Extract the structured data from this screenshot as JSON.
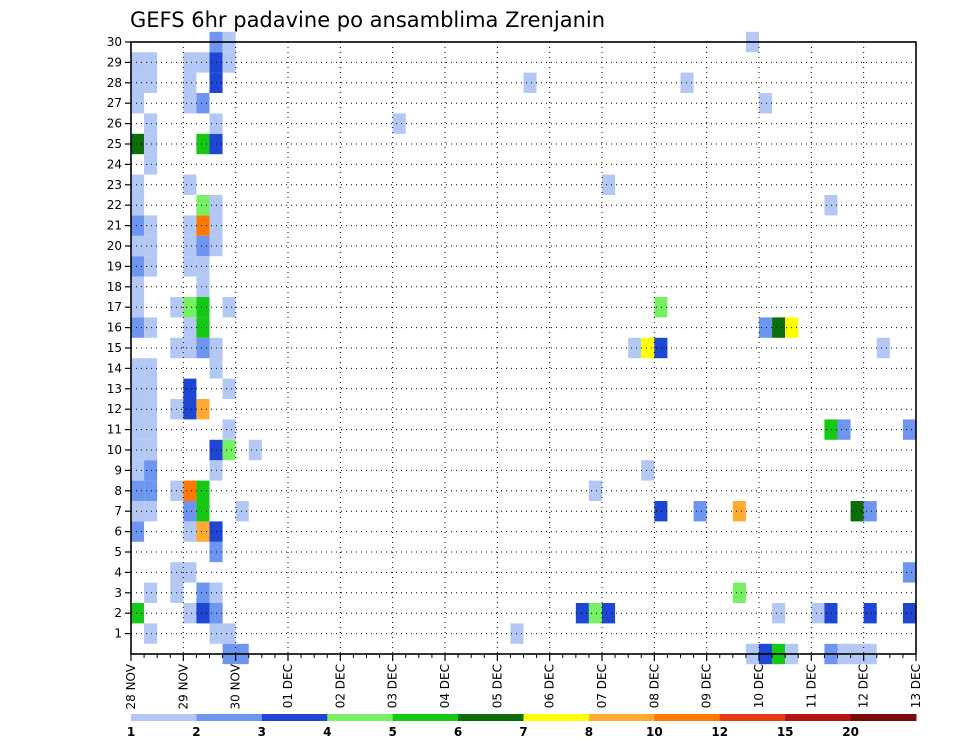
{
  "chart_data": {
    "type": "heatmap",
    "title": "GEFS 6hr padavine po ansamblima Zrenjanin",
    "xlabel": "",
    "ylabel": "",
    "y_ticks": [
      "1",
      "2",
      "3",
      "4",
      "5",
      "6",
      "7",
      "8",
      "9",
      "10",
      "11",
      "12",
      "13",
      "14",
      "15",
      "16",
      "17",
      "18",
      "19",
      "20",
      "21",
      "22",
      "23",
      "24",
      "25",
      "26",
      "27",
      "28",
      "29",
      "30"
    ],
    "x_ticks": [
      "28 NOV",
      "29 NOV",
      "30 NOV",
      "01 DEC",
      "02 DEC",
      "03 DEC",
      "04 DEC",
      "05 DEC",
      "06 DEC",
      "07 DEC",
      "08 DEC",
      "09 DEC",
      "10 DEC",
      "11 DEC",
      "12 DEC",
      "13 DEC"
    ],
    "x_range_days": [
      0,
      15
    ],
    "y_range": [
      0,
      30
    ],
    "levels": [
      "1",
      "2",
      "3",
      "4",
      "5",
      "6",
      "7",
      "8",
      "10",
      "12",
      "15",
      "20"
    ],
    "colors": [
      "#b4c8f5",
      "#6e96f0",
      "#1e46d2",
      "#78f064",
      "#14c814",
      "#0a6e0a",
      "#ffff00",
      "#ffaa32",
      "#ff7800",
      "#e63c14",
      "#b41414",
      "#780a0a"
    ],
    "cells": [
      [
        0.25,
        1,
        1
      ],
      [
        0.75,
        3,
        1
      ],
      [
        0.75,
        4,
        1
      ],
      [
        1.0,
        2,
        1
      ],
      [
        1.25,
        3,
        1
      ],
      [
        1.5,
        1,
        1
      ],
      [
        1.5,
        2,
        1
      ],
      [
        1.75,
        1,
        1
      ],
      [
        7.25,
        1,
        1
      ],
      [
        0.0,
        2,
        5
      ],
      [
        1.25,
        2,
        3
      ],
      [
        1.5,
        2,
        2
      ],
      [
        8.5,
        2,
        3
      ],
      [
        8.75,
        2,
        4
      ],
      [
        9.0,
        2,
        3
      ],
      [
        12.25,
        2,
        1
      ],
      [
        13.0,
        2,
        1
      ],
      [
        13.25,
        2,
        3
      ],
      [
        14.0,
        2,
        3
      ],
      [
        14.75,
        2,
        3
      ],
      [
        0.25,
        3,
        1
      ],
      [
        1.25,
        3,
        2
      ],
      [
        1.5,
        3,
        1
      ],
      [
        11.5,
        3,
        4
      ],
      [
        1.0,
        4,
        1
      ],
      [
        14.75,
        4,
        2
      ],
      [
        1.5,
        5,
        2
      ],
      [
        0.0,
        6,
        2
      ],
      [
        1.0,
        6,
        1
      ],
      [
        1.25,
        6,
        8
      ],
      [
        1.5,
        6,
        3
      ],
      [
        0.0,
        7,
        1
      ],
      [
        0.25,
        7,
        1
      ],
      [
        1.0,
        7,
        2
      ],
      [
        1.25,
        7,
        5
      ],
      [
        2.0,
        7,
        1
      ],
      [
        10.0,
        7,
        3
      ],
      [
        10.75,
        7,
        2
      ],
      [
        11.5,
        7,
        8
      ],
      [
        13.75,
        7,
        6
      ],
      [
        14.0,
        7,
        2
      ],
      [
        0.0,
        8,
        2
      ],
      [
        0.25,
        8,
        2
      ],
      [
        0.75,
        8,
        1
      ],
      [
        1.0,
        8,
        9
      ],
      [
        1.25,
        8,
        5
      ],
      [
        8.75,
        8,
        1
      ],
      [
        0.0,
        9,
        1
      ],
      [
        0.25,
        9,
        2
      ],
      [
        1.5,
        9,
        1
      ],
      [
        9.75,
        9,
        1
      ],
      [
        0.0,
        10,
        1
      ],
      [
        0.25,
        10,
        1
      ],
      [
        1.5,
        10,
        3
      ],
      [
        1.75,
        10,
        4
      ],
      [
        2.25,
        10,
        1
      ],
      [
        0.0,
        11,
        1
      ],
      [
        0.25,
        11,
        1
      ],
      [
        1.75,
        11,
        1
      ],
      [
        13.25,
        11,
        5
      ],
      [
        13.5,
        11,
        2
      ],
      [
        14.75,
        11,
        2
      ],
      [
        0.0,
        12,
        1
      ],
      [
        0.25,
        12,
        1
      ],
      [
        0.75,
        12,
        1
      ],
      [
        1.0,
        12,
        3
      ],
      [
        1.25,
        12,
        8
      ],
      [
        0.0,
        13,
        1
      ],
      [
        0.25,
        13,
        1
      ],
      [
        1.0,
        13,
        3
      ],
      [
        1.75,
        13,
        1
      ],
      [
        0.0,
        14,
        1
      ],
      [
        0.25,
        14,
        1
      ],
      [
        1.5,
        14,
        1
      ],
      [
        0.75,
        15,
        1
      ],
      [
        1.0,
        15,
        1
      ],
      [
        1.25,
        15,
        2
      ],
      [
        1.5,
        15,
        1
      ],
      [
        9.5,
        15,
        1
      ],
      [
        9.75,
        15,
        7
      ],
      [
        10.0,
        15,
        3
      ],
      [
        14.25,
        15,
        1
      ],
      [
        0.0,
        16,
        2
      ],
      [
        0.25,
        16,
        1
      ],
      [
        1.0,
        16,
        1
      ],
      [
        1.25,
        16,
        5
      ],
      [
        12.0,
        16,
        2
      ],
      [
        12.25,
        16,
        6
      ],
      [
        12.5,
        16,
        7
      ],
      [
        0.0,
        17,
        1
      ],
      [
        0.75,
        17,
        1
      ],
      [
        1.0,
        17,
        4
      ],
      [
        1.25,
        17,
        5
      ],
      [
        1.75,
        17,
        1
      ],
      [
        10.0,
        17,
        4
      ],
      [
        0.0,
        18,
        1
      ],
      [
        1.25,
        18,
        1
      ],
      [
        0.0,
        19,
        2
      ],
      [
        0.25,
        19,
        1
      ],
      [
        1.0,
        19,
        1
      ],
      [
        1.25,
        19,
        1
      ],
      [
        0.0,
        20,
        1
      ],
      [
        0.25,
        20,
        1
      ],
      [
        1.0,
        20,
        1
      ],
      [
        1.25,
        20,
        2
      ],
      [
        1.5,
        20,
        1
      ],
      [
        0.0,
        21,
        2
      ],
      [
        0.25,
        21,
        1
      ],
      [
        1.0,
        21,
        1
      ],
      [
        1.25,
        21,
        9
      ],
      [
        1.5,
        21,
        1
      ],
      [
        0.0,
        22,
        1
      ],
      [
        1.25,
        22,
        4
      ],
      [
        1.5,
        22,
        1
      ],
      [
        13.25,
        22,
        1
      ],
      [
        0.0,
        23,
        1
      ],
      [
        1.0,
        23,
        1
      ],
      [
        9.0,
        23,
        1
      ],
      [
        0.25,
        24,
        1
      ],
      [
        0.0,
        25,
        6
      ],
      [
        0.25,
        25,
        1
      ],
      [
        1.25,
        25,
        5
      ],
      [
        1.5,
        25,
        3
      ],
      [
        0.25,
        26,
        1
      ],
      [
        1.5,
        26,
        1
      ],
      [
        5.0,
        26,
        1
      ],
      [
        0.0,
        27,
        1
      ],
      [
        1.0,
        27,
        1
      ],
      [
        1.25,
        27,
        2
      ],
      [
        12.0,
        27,
        1
      ],
      [
        0.0,
        28,
        1
      ],
      [
        0.25,
        28,
        1
      ],
      [
        1.0,
        28,
        1
      ],
      [
        1.5,
        28,
        3
      ],
      [
        7.5,
        28,
        1
      ],
      [
        10.5,
        28,
        1
      ],
      [
        0.0,
        29,
        1
      ],
      [
        0.25,
        29,
        1
      ],
      [
        1.0,
        29,
        1
      ],
      [
        1.25,
        29,
        1
      ],
      [
        1.5,
        29,
        3
      ],
      [
        1.75,
        29,
        1
      ],
      [
        1.5,
        30,
        2
      ],
      [
        1.75,
        30,
        1
      ],
      [
        11.75,
        30,
        1
      ],
      [
        1.75,
        0,
        2
      ],
      [
        2.0,
        0,
        2
      ],
      [
        11.75,
        0,
        1
      ],
      [
        12.0,
        0,
        3
      ],
      [
        12.25,
        0,
        5
      ],
      [
        12.5,
        0,
        1
      ],
      [
        13.25,
        0,
        2
      ],
      [
        13.5,
        0,
        1
      ],
      [
        13.75,
        0,
        1
      ],
      [
        14.0,
        0,
        1
      ]
    ]
  }
}
